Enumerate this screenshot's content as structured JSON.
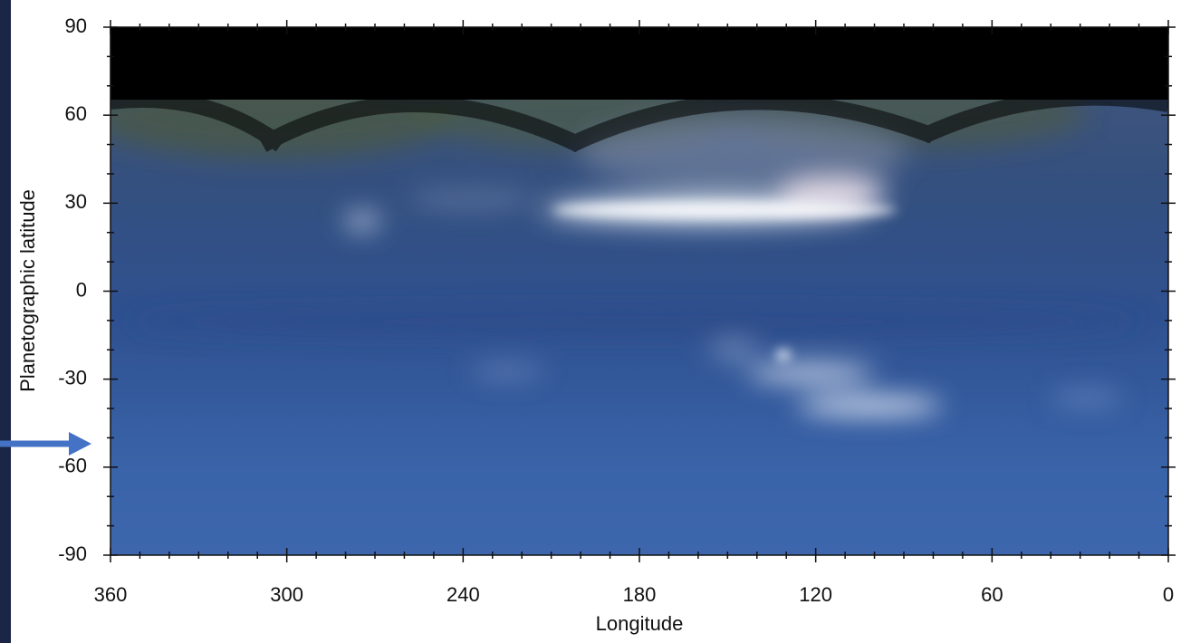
{
  "chart_data": {
    "type": "image",
    "xlabel": "Longitude",
    "ylabel": "Planetographic latitude",
    "xlim": [
      360,
      0
    ],
    "ylim": [
      -90,
      90
    ],
    "xticks": [
      360,
      300,
      240,
      180,
      120,
      60,
      0
    ],
    "yticks": [
      90,
      60,
      30,
      0,
      -30,
      -60,
      -90
    ],
    "xminorticks": [
      350,
      340,
      330,
      320,
      310,
      290,
      280,
      270,
      260,
      250,
      230,
      220,
      210,
      200,
      190,
      170,
      160,
      150,
      140,
      130,
      110,
      100,
      90,
      80,
      70,
      50,
      40,
      30,
      20,
      10
    ],
    "yminorticks": [
      80,
      70,
      50,
      40,
      20,
      10,
      -10,
      -20,
      -40,
      -50,
      -70,
      -80
    ]
  }
}
